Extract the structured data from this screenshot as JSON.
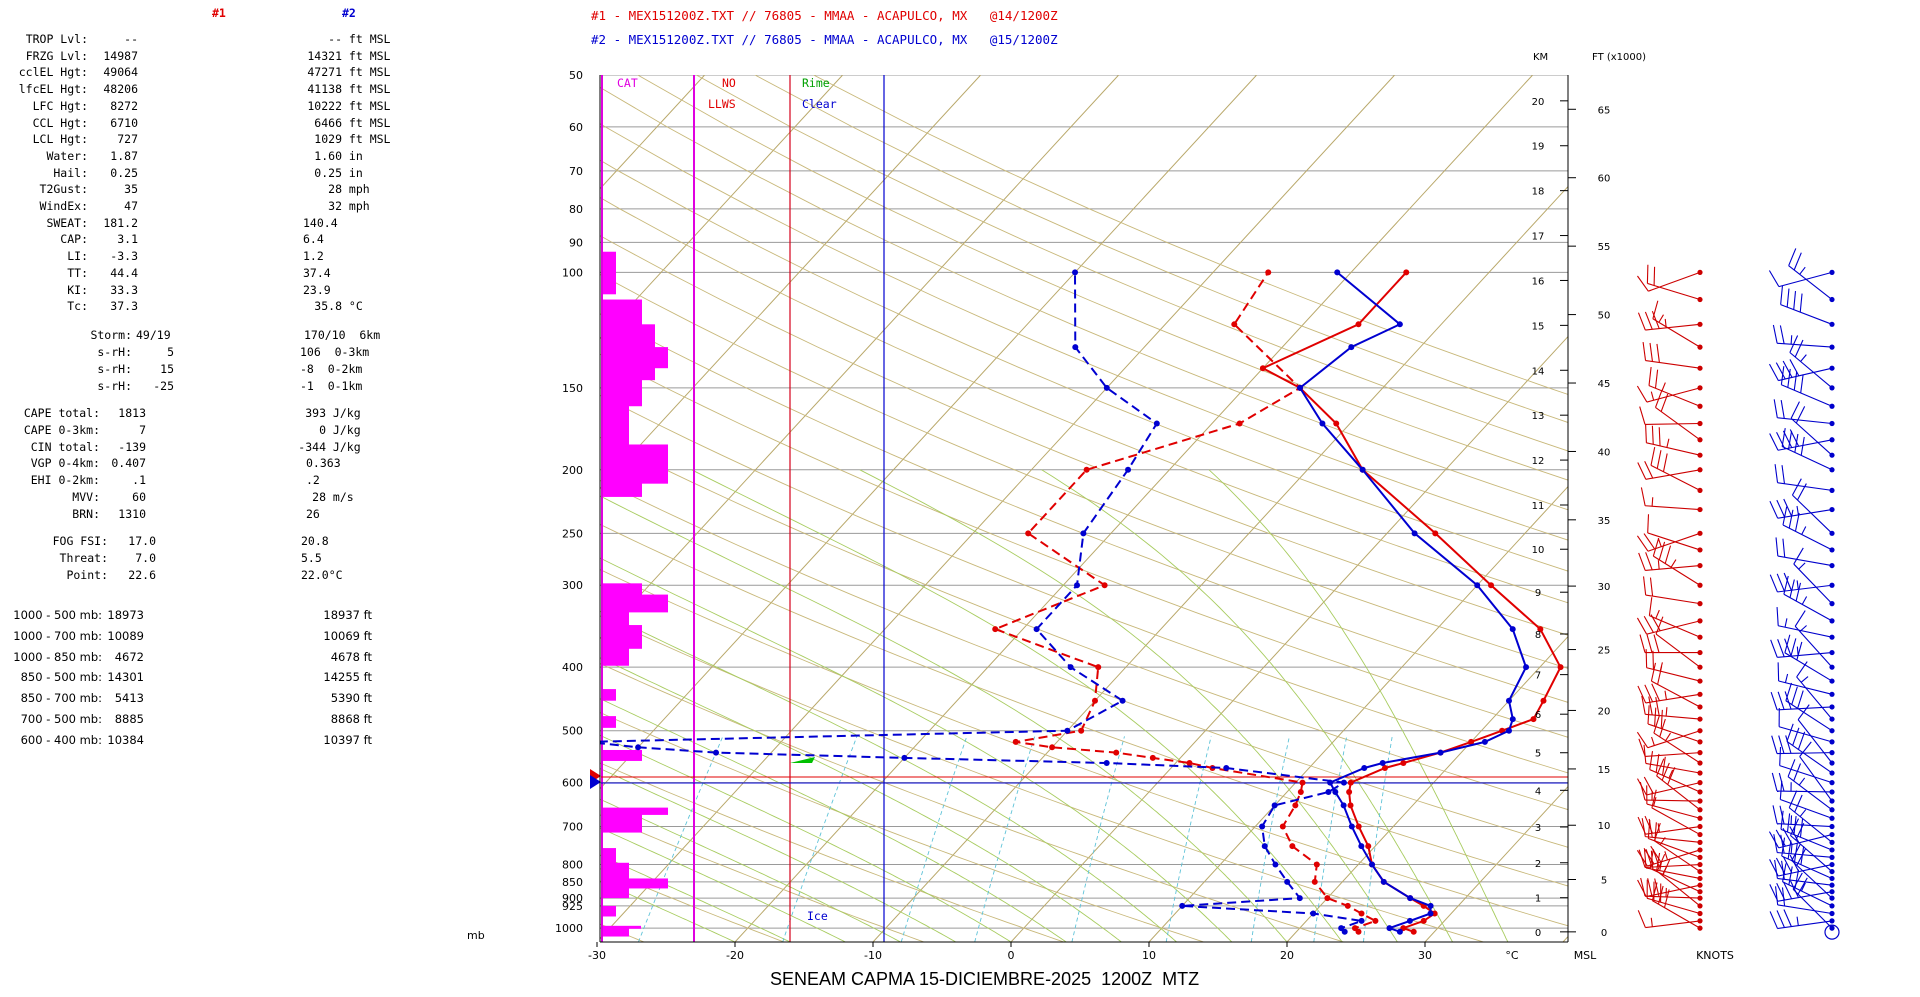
{
  "header": {
    "col1": "#1",
    "col2": "#2",
    "col1_color": "#e00000",
    "col2_color": "#0000d0",
    "title1": "#1 - MEX151200Z.TXT // 76805 - MMAA - ACAPULCO, MX   @14/1200Z",
    "title2": "#2 - MEX151200Z.TXT // 76805 - MMAA - ACAPULCO, MX   @15/1200Z"
  },
  "indices": [
    {
      "label": "TROP Lvl:",
      "v1": "--",
      "v2": "-- ft MSL"
    },
    {
      "label": "FRZG Lvl:",
      "v1": "14987",
      "v2": "14321 ft MSL"
    },
    {
      "label": "cclEL Hgt:",
      "v1": "49064",
      "v2": "47271 ft MSL"
    },
    {
      "label": "lfcEL Hgt:",
      "v1": "48206",
      "v2": "41138 ft MSL"
    },
    {
      "label": "LFC Hgt:",
      "v1": "8272",
      "v2": "10222 ft MSL"
    },
    {
      "label": "CCL Hgt:",
      "v1": "6710",
      "v2": "6466 ft MSL"
    },
    {
      "label": "LCL Hgt:",
      "v1": "727",
      "v2": "1029 ft MSL"
    },
    {
      "label": "Water:",
      "v1": "1.87",
      "v2": "1.60 in"
    },
    {
      "label": "Hail:",
      "v1": "0.25",
      "v2": "0.25 in"
    },
    {
      "label": "T2Gust:",
      "v1": "35",
      "v2": "28 mph"
    },
    {
      "label": "WindEx:",
      "v1": "47",
      "v2": "32 mph"
    },
    {
      "label": "SWEAT:",
      "v1": "181.2",
      "v2": "140.4"
    },
    {
      "label": "CAP:",
      "v1": "3.1",
      "v2": "6.4"
    },
    {
      "label": "LI:",
      "v1": "-3.3",
      "v2": "1.2"
    },
    {
      "label": "TT:",
      "v1": "44.4",
      "v2": "37.4"
    },
    {
      "label": "KI:",
      "v1": "33.3",
      "v2": "23.9"
    },
    {
      "label": "Tc:",
      "v1": "37.3",
      "v2": "35.8 °C"
    }
  ],
  "storm": [
    {
      "label": "Storm:",
      "v1": "49/19",
      "v2": "170/10  6km"
    },
    {
      "label": "s-rH:",
      "v1": "5",
      "v2": "106  0-3km"
    },
    {
      "label": "s-rH:",
      "v1": "15",
      "v2": "-8  0-2km"
    },
    {
      "label": "s-rH:",
      "v1": "-25",
      "v2": "-1  0-1km"
    }
  ],
  "cape": [
    {
      "label": "CAPE total:",
      "v1": "1813",
      "v2": "393 J/kg"
    },
    {
      "label": "CAPE 0-3km:",
      "v1": "7",
      "v2": "0 J/kg"
    },
    {
      "label": "CIN total:",
      "v1": "-139",
      "v2": "-344 J/kg"
    },
    {
      "label": "VGP 0-4km:",
      "v1": "0.407",
      "v2": "0.363"
    },
    {
      "label": "EHI 0-2km:",
      "v1": ".1",
      "v2": ".2"
    },
    {
      "label": "MVV:",
      "v1": "60",
      "v2": "28 m/s"
    },
    {
      "label": "BRN:",
      "v1": "1310",
      "v2": "26"
    }
  ],
  "fog": [
    {
      "label": "FOG FSI:",
      "v1": "17.0",
      "v2": "20.8"
    },
    {
      "label": "Threat:",
      "v1": "7.0",
      "v2": "5.5"
    },
    {
      "label": "Point:",
      "v1": "22.6",
      "v2": "22.0°C"
    }
  ],
  "thickness": [
    {
      "label": "1000 - 500 mb:",
      "v1": "18973",
      "v2": "18937 ft"
    },
    {
      "label": "1000 - 700 mb:",
      "v1": "10089",
      "v2": "10069 ft"
    },
    {
      "label": "1000 - 850 mb:",
      "v1": "4672",
      "v2": "4678 ft"
    },
    {
      "label": "850 - 500 mb:",
      "v1": "14301",
      "v2": "14255 ft"
    },
    {
      "label": "850 - 700 mb:",
      "v1": "5413",
      "v2": "5390 ft"
    },
    {
      "label": "700 - 500 mb:",
      "v1": "8885",
      "v2": "8868 ft"
    },
    {
      "label": "600 - 400 mb:",
      "v1": "10384",
      "v2": "10397 ft"
    }
  ],
  "strip": {
    "cat": "CAT",
    "no": "NO",
    "llws": "LLWS",
    "rime": "Rime",
    "clear": "Clear",
    "ice": "Ice",
    "cat_color": "#e000e0",
    "rime_color": "#00a000"
  },
  "axes": {
    "p_unit": "mb",
    "t_unit": "°C",
    "msl": "MSL",
    "km": "KM",
    "ft": "FT (x1000)",
    "knots": "KNOTS",
    "footer": "SENEAM CAPMA 15-DICIEMBRE-2025  1200Z  MTZ"
  },
  "chart_data": {
    "type": "line",
    "title": "SENEAM CAPMA 15-DICIEMBRE-2025  1200Z  MTZ",
    "xlabel": "°C",
    "ylabel": "mb",
    "pressure_ticks": [
      50,
      60,
      70,
      80,
      90,
      100,
      150,
      200,
      250,
      300,
      400,
      500,
      600,
      700,
      800,
      850,
      900,
      925,
      1000
    ],
    "temp_ticks": [
      -30,
      -20,
      -10,
      0,
      10,
      20,
      30
    ],
    "km_ticks": [
      0,
      1,
      2,
      3,
      4,
      5,
      6,
      7,
      8,
      9,
      10,
      11,
      12,
      13,
      14,
      15,
      16,
      17,
      18,
      19,
      20
    ],
    "ft_ticks": [
      0,
      5,
      10,
      15,
      20,
      25,
      30,
      35,
      40,
      45,
      50,
      55,
      60,
      65
    ],
    "xlim": [
      -30,
      40
    ],
    "ylim": [
      1050,
      50
    ],
    "series": [
      {
        "name": "#1 @14/1200Z",
        "color": "#e00000",
        "temp": [
          [
            1013,
            28.5
          ],
          [
            1000,
            27.5
          ],
          [
            975,
            28.5
          ],
          [
            950,
            28.8
          ],
          [
            925,
            27.5
          ],
          [
            900,
            26
          ],
          [
            850,
            23
          ],
          [
            800,
            21
          ],
          [
            750,
            19.5
          ],
          [
            700,
            17.5
          ],
          [
            650,
            15.5
          ],
          [
            620,
            14.5
          ],
          [
            600,
            14
          ],
          [
            570,
            15.5
          ],
          [
            560,
            16.5
          ],
          [
            540,
            18.5
          ],
          [
            520,
            20
          ],
          [
            500,
            21.5
          ],
          [
            480,
            23
          ],
          [
            450,
            22.5
          ],
          [
            400,
            21.5
          ],
          [
            350,
            17.5
          ],
          [
            300,
            11
          ],
          [
            250,
            3.5
          ],
          [
            200,
            -6
          ],
          [
            170,
            -11
          ],
          [
            150,
            -16
          ],
          [
            140,
            -20
          ],
          [
            120,
            -16
          ],
          [
            100,
            -16
          ]
        ],
        "dew": [
          [
            1013,
            24.5
          ],
          [
            1000,
            24
          ],
          [
            975,
            25
          ],
          [
            950,
            23.5
          ],
          [
            925,
            22
          ],
          [
            900,
            20
          ],
          [
            850,
            18
          ],
          [
            800,
            17
          ],
          [
            750,
            14
          ],
          [
            700,
            12
          ],
          [
            650,
            11.5
          ],
          [
            620,
            11
          ],
          [
            600,
            10.5
          ],
          [
            570,
            3
          ],
          [
            560,
            1
          ],
          [
            550,
            -2
          ],
          [
            540,
            -5
          ],
          [
            530,
            -10
          ],
          [
            520,
            -13
          ],
          [
            500,
            -9
          ],
          [
            450,
            -10
          ],
          [
            400,
            -12
          ],
          [
            350,
            -22
          ],
          [
            300,
            -17
          ],
          [
            250,
            -26
          ],
          [
            200,
            -26
          ],
          [
            170,
            -18
          ],
          [
            150,
            -16
          ],
          [
            120,
            -25
          ],
          [
            100,
            -26
          ]
        ]
      },
      {
        "name": "#2 @15/1200Z",
        "color": "#0000d0",
        "temp": [
          [
            1013,
            27.5
          ],
          [
            1000,
            26.5
          ],
          [
            975,
            27.5
          ],
          [
            950,
            28.5
          ],
          [
            925,
            28
          ],
          [
            900,
            26
          ],
          [
            850,
            23
          ],
          [
            800,
            21
          ],
          [
            750,
            19
          ],
          [
            700,
            17
          ],
          [
            650,
            15
          ],
          [
            620,
            13.5
          ],
          [
            600,
            12.5
          ],
          [
            570,
            14
          ],
          [
            560,
            15
          ],
          [
            540,
            18.5
          ],
          [
            520,
            21
          ],
          [
            500,
            22
          ],
          [
            480,
            21.5
          ],
          [
            450,
            20
          ],
          [
            400,
            19
          ],
          [
            350,
            15.5
          ],
          [
            300,
            10
          ],
          [
            250,
            2
          ],
          [
            200,
            -6
          ],
          [
            170,
            -12
          ],
          [
            150,
            -16
          ],
          [
            130,
            -15
          ],
          [
            120,
            -13
          ],
          [
            100,
            -21
          ]
        ],
        "dew": [
          [
            1013,
            23.5
          ],
          [
            1000,
            23
          ],
          [
            975,
            24
          ],
          [
            950,
            20
          ],
          [
            925,
            10
          ],
          [
            900,
            18
          ],
          [
            850,
            16
          ],
          [
            800,
            14
          ],
          [
            750,
            12
          ],
          [
            700,
            10.5
          ],
          [
            650,
            10
          ],
          [
            620,
            13
          ],
          [
            600,
            13.5
          ],
          [
            570,
            4
          ],
          [
            560,
            -5
          ],
          [
            550,
            -20
          ],
          [
            540,
            -34
          ],
          [
            530,
            -40
          ],
          [
            520,
            -44
          ],
          [
            500,
            -10
          ],
          [
            450,
            -8
          ],
          [
            400,
            -14
          ],
          [
            350,
            -19
          ],
          [
            300,
            -19
          ],
          [
            250,
            -22
          ],
          [
            200,
            -23
          ],
          [
            170,
            -24
          ],
          [
            150,
            -30
          ],
          [
            130,
            -35
          ],
          [
            100,
            -40
          ]
        ]
      }
    ]
  }
}
